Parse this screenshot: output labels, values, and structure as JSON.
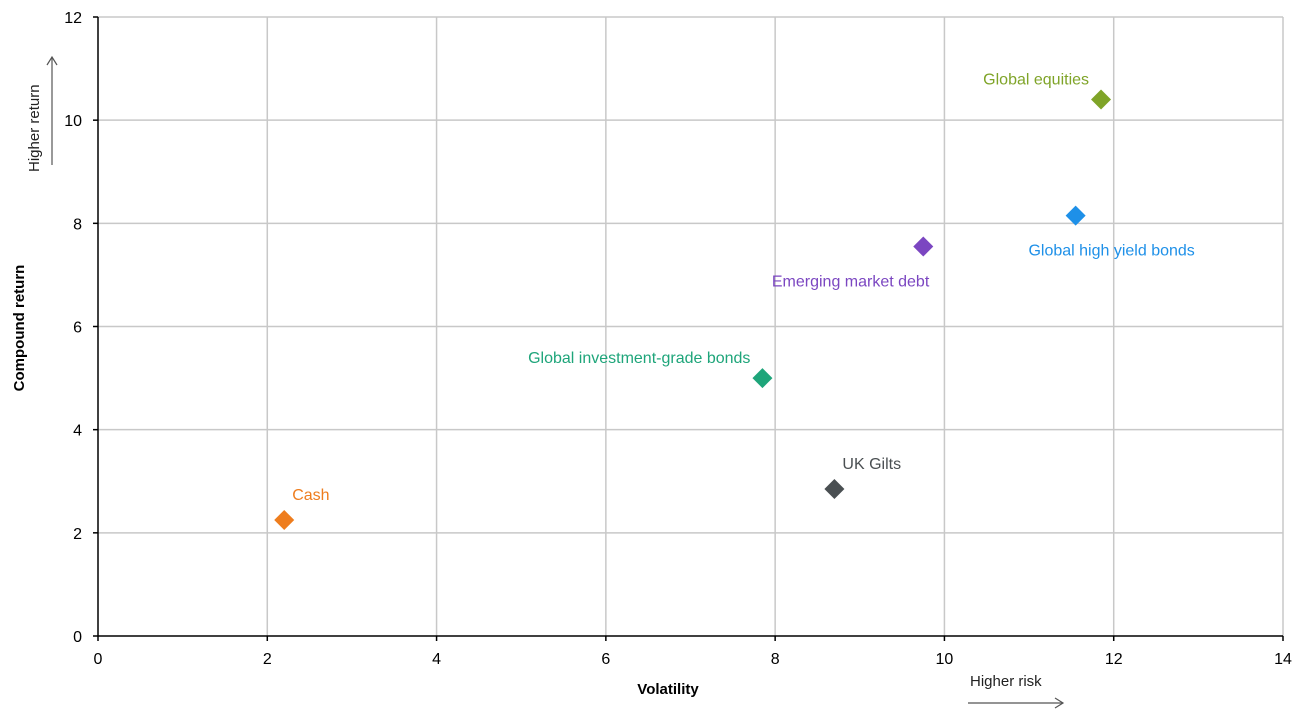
{
  "chart_data": {
    "type": "scatter",
    "title": "",
    "xlabel": "Volatility",
    "ylabel": "Compound return",
    "xlim": [
      0,
      14
    ],
    "ylim": [
      0,
      12
    ],
    "x_ticks": [
      0,
      2,
      4,
      6,
      8,
      10,
      12,
      14
    ],
    "y_ticks": [
      0,
      2,
      4,
      6,
      8,
      10,
      12
    ],
    "grid": true,
    "marker": "diamond",
    "points": [
      {
        "label": "Cash",
        "x": 2.2,
        "y": 2.25,
        "color": "#ee7d1e",
        "label_position": "above-right"
      },
      {
        "label": "UK Gilts",
        "x": 8.7,
        "y": 2.85,
        "color": "#4a4f52",
        "label_position": "above-right"
      },
      {
        "label": "Global investment-grade bonds",
        "x": 7.85,
        "y": 5.0,
        "color": "#1ea57a",
        "label_position": "above-left"
      },
      {
        "label": "Emerging market debt",
        "x": 9.75,
        "y": 7.55,
        "color": "#7b46c1",
        "label_position": "below-left"
      },
      {
        "label": "Global high yield bonds",
        "x": 11.55,
        "y": 8.15,
        "color": "#1e90e8",
        "label_position": "below"
      },
      {
        "label": "Global equities",
        "x": 11.85,
        "y": 10.4,
        "color": "#7fa428",
        "label_position": "above-left"
      }
    ],
    "annotations": {
      "x_arrow_label": "Higher risk",
      "y_arrow_label": "Higher return"
    }
  }
}
